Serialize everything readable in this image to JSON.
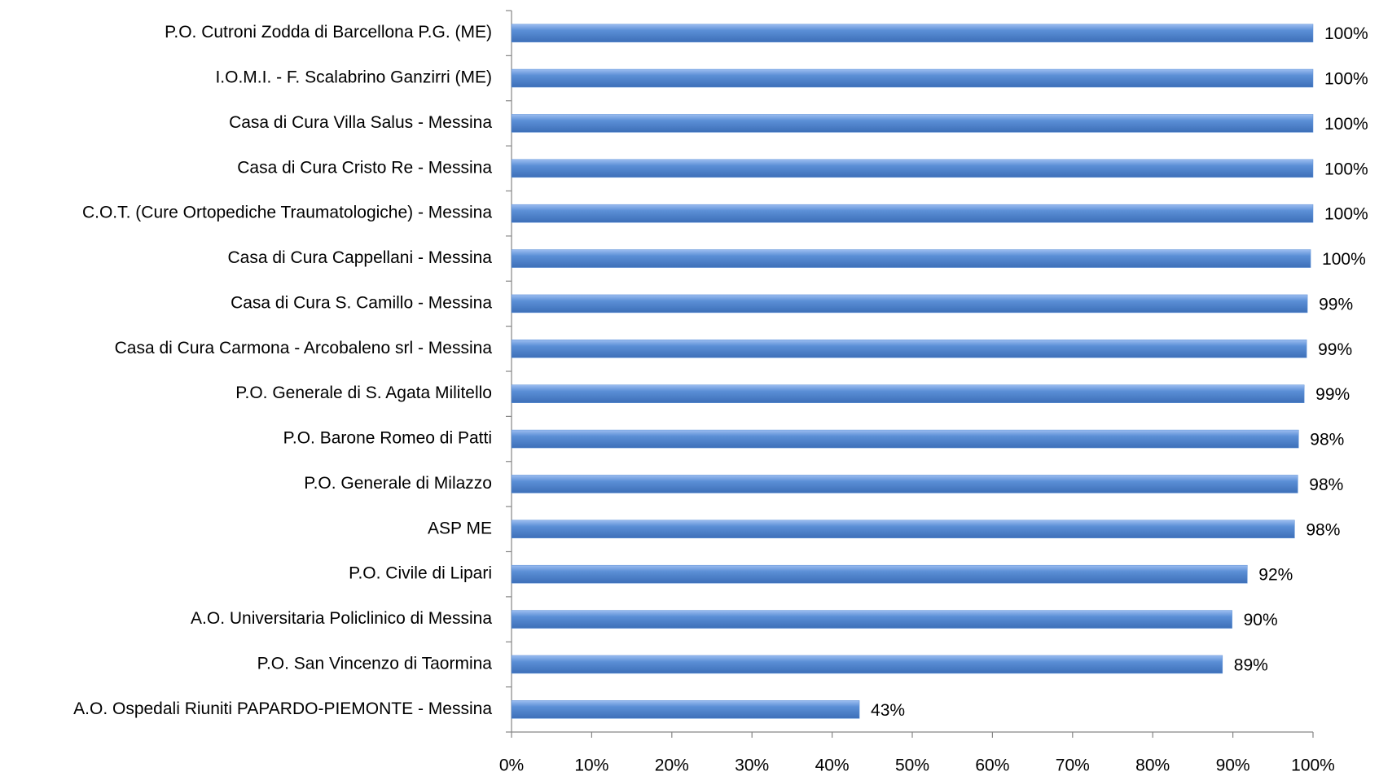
{
  "chart_data": {
    "type": "bar",
    "orientation": "horizontal",
    "categories": [
      "P.O.  Cutroni Zodda  di Barcellona P.G. (ME)",
      "I.O.M.I.  - F. Scalabrino Ganzirri (ME)",
      "Casa di Cura Villa Salus  - Messina",
      "Casa di Cura  Cristo Re  - Messina",
      "C.O.T. (Cure Ortopediche Traumatologiche) - Messina",
      "Casa di Cura  Cappellani  - Messina",
      "Casa di Cura  S. Camillo  - Messina",
      "Casa di Cura  Carmona - Arcobaleno srl  - Messina",
      "P.O.  Generale  di S. Agata Militello",
      "P.O.  Barone Romeo  di Patti",
      "P.O.  Generale  di Milazzo",
      "ASP ME",
      "P.O.  Civile  di Lipari",
      "A.O. Universitaria Policlinico di Messina",
      "P.O.  San Vincenzo  di Taormina",
      "A.O. Ospedali Riuniti   PAPARDO-PIEMONTE  - Messina"
    ],
    "values": [
      100,
      100,
      100,
      100,
      100,
      99.7,
      99.3,
      99.2,
      98.9,
      98.2,
      98.1,
      97.7,
      91.8,
      89.9,
      88.7,
      43.4
    ],
    "value_labels": [
      "100%",
      "100%",
      "100%",
      "100%",
      "100%",
      "100%",
      "99%",
      "99%",
      "99%",
      "98%",
      "98%",
      "98%",
      "92%",
      "90%",
      "89%",
      "43%"
    ],
    "color": "#5b8fd6",
    "xlim": [
      0,
      100
    ],
    "xticks": [
      {
        "value": 0,
        "label": "0%"
      },
      {
        "value": 10,
        "label": "10%"
      },
      {
        "value": 20,
        "label": "20%"
      },
      {
        "value": 30,
        "label": "30%"
      },
      {
        "value": 40,
        "label": "40%"
      },
      {
        "value": 50,
        "label": "50%"
      },
      {
        "value": 60,
        "label": "60%"
      },
      {
        "value": 70,
        "label": "70%"
      },
      {
        "value": 80,
        "label": "80%"
      },
      {
        "value": 90,
        "label": "90%"
      },
      {
        "value": 100,
        "label": "100%"
      }
    ],
    "grid": false
  }
}
